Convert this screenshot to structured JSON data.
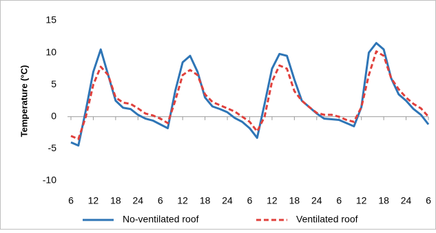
{
  "chart_data": {
    "type": "line",
    "y_label": "Temperature (°C)",
    "x": [
      6,
      8,
      10,
      12,
      14,
      16,
      18,
      20,
      22,
      24,
      26,
      28,
      30,
      32,
      34,
      36,
      38,
      40,
      42,
      44,
      46,
      48,
      50,
      52,
      54,
      56,
      58,
      60,
      62,
      64,
      66,
      68,
      70,
      72,
      74,
      76,
      78,
      80,
      82,
      84,
      86,
      88,
      90,
      92,
      94,
      96,
      98,
      100,
      102
    ],
    "series": [
      {
        "name": "No-ventilated roof",
        "color": "#2e75b6",
        "dash": false,
        "values": [
          -4,
          -4.5,
          1,
          7,
          10.5,
          6.5,
          2.5,
          1.4,
          1.2,
          0.3,
          -0.3,
          -0.6,
          -1.2,
          -1.8,
          4,
          8.5,
          9.5,
          7,
          3,
          1.6,
          1.2,
          0.7,
          -0.2,
          -0.8,
          -1.8,
          -3.3,
          2,
          7.5,
          9.8,
          9.5,
          5.8,
          2.5,
          1.5,
          0.5,
          -0.3,
          -0.4,
          -0.5,
          -1,
          -1.5,
          1.5,
          10,
          11.5,
          10.5,
          6,
          3.5,
          2.5,
          1.2,
          0.3,
          -1.2
        ]
      },
      {
        "name": "Ventilated roof",
        "color": "#e0403c",
        "dash": true,
        "values": [
          -3,
          -3.5,
          0,
          5,
          7.8,
          6.5,
          3,
          2.2,
          2,
          1.3,
          0.5,
          0.2,
          -0.3,
          -1,
          2.5,
          6.5,
          7.3,
          6.5,
          3.5,
          2.3,
          1.8,
          1.3,
          0.8,
          0,
          -0.8,
          -2.3,
          0,
          5.5,
          8,
          7.5,
          4,
          2.5,
          1.5,
          0.6,
          0.3,
          0.3,
          0,
          -0.5,
          -0.8,
          1.5,
          6.5,
          10.2,
          9.5,
          6,
          4.3,
          3,
          2,
          1.3,
          0
        ]
      }
    ],
    "xlim": [
      6,
      102
    ],
    "xticks": [
      6,
      12,
      18,
      24,
      {
        "value": 30,
        "label": "6"
      },
      {
        "value": 36,
        "label": "12"
      },
      {
        "value": 42,
        "label": "18"
      },
      {
        "value": 48,
        "label": "24"
      },
      {
        "value": 54,
        "label": "6"
      },
      {
        "value": 60,
        "label": "12"
      },
      {
        "value": 66,
        "label": "18"
      },
      {
        "value": 72,
        "label": "24"
      },
      {
        "value": 78,
        "label": "6"
      },
      {
        "value": 84,
        "label": "12"
      },
      {
        "value": 90,
        "label": "18"
      },
      {
        "value": 96,
        "label": "24"
      },
      {
        "value": 102,
        "label": "6"
      }
    ],
    "ylim": [
      -10,
      15
    ],
    "yticks": [
      -10,
      -5,
      0,
      5,
      10,
      15
    ],
    "grid": false,
    "legend": "bottom"
  }
}
